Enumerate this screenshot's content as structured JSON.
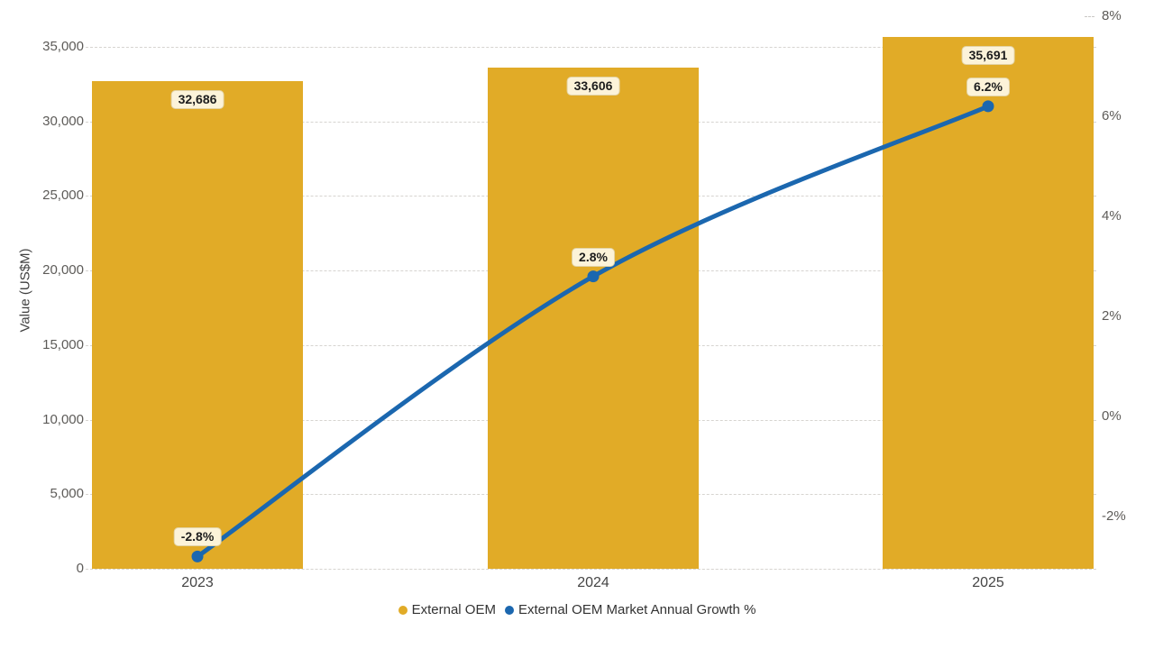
{
  "chart_data": {
    "type": "combo-bar-line",
    "title": "",
    "categories": [
      "2023",
      "2024",
      "2025"
    ],
    "series": [
      {
        "name": "External OEM",
        "type": "bar",
        "axis": "left",
        "values": [
          32686,
          33606,
          35691
        ],
        "labels": [
          "32,686",
          "33,606",
          "35,691"
        ],
        "color": "#E1AB27"
      },
      {
        "name": "External OEM Market Annual Growth %",
        "type": "line",
        "axis": "right",
        "values": [
          -2.8,
          2.8,
          6.2
        ],
        "labels": [
          "-2.8%",
          "2.8%",
          "6.2%"
        ],
        "color": "#1B67AF"
      }
    ],
    "left_axis": {
      "title": "Value (US$M)",
      "min": 0,
      "max": 35000,
      "tick_step": 5000,
      "tick_labels": [
        "0",
        "5,000",
        "10,000",
        "15,000",
        "20,000",
        "25,000",
        "30,000",
        "35,000"
      ]
    },
    "right_axis": {
      "tick_labels": [
        "-2%",
        "0%",
        "2%",
        "4%",
        "6%",
        "8%"
      ],
      "tick_values": [
        -2,
        0,
        2,
        4,
        6,
        8
      ]
    },
    "grid": "horizontal-dashed",
    "legend_position": "bottom",
    "background": "#FFFFFF",
    "label_pill": {
      "bg": "#FCF3D9",
      "border": "#E2D3A5",
      "text": "#1D1D1D"
    }
  }
}
